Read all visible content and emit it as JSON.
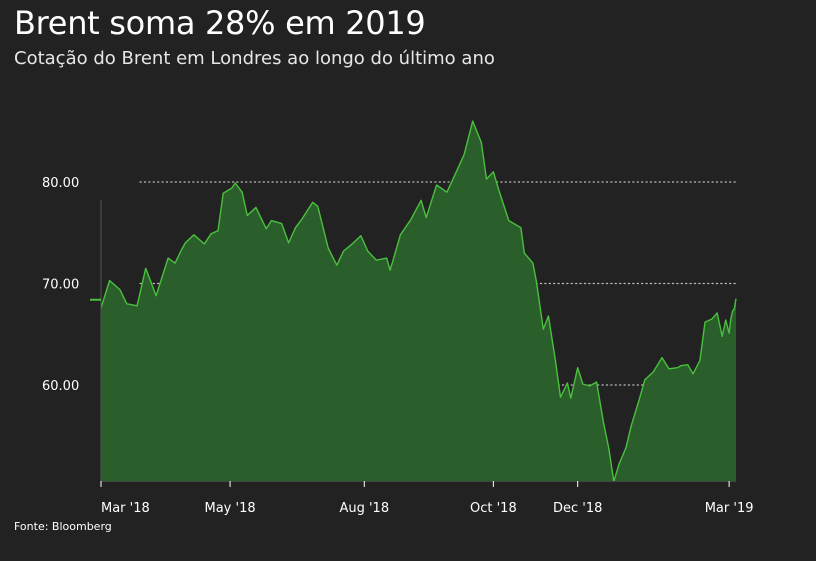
{
  "header": {
    "title": "Brent soma 28% em 2019",
    "subtitle": "Cotação do Brent em Londres ao longo do último ano"
  },
  "footer": {
    "source": "Fonte: Bloomberg"
  },
  "colors": {
    "background": "#222222",
    "area_fill": "#2a5e2a",
    "line": "#49c03e",
    "gridline": "#bbbbbb"
  },
  "chart_data": {
    "type": "area",
    "title": "Brent soma 28% em 2019",
    "subtitle": "Cotação do Brent em Londres ao longo do último ano",
    "xlabel": "",
    "ylabel": "",
    "xlim": [
      "2018-03-01",
      "2019-03-05"
    ],
    "ylim": [
      50,
      88
    ],
    "grid": "horizontal dotted",
    "y_ticks": [
      {
        "value": 60,
        "label": "60.00"
      },
      {
        "value": 70,
        "label": "70.00"
      },
      {
        "value": 80,
        "label": "80.00"
      }
    ],
    "x_ticks": [
      {
        "date": "2018-03-01",
        "label": "Mar '18"
      },
      {
        "date": "2018-05-15",
        "label": "May '18"
      },
      {
        "date": "2018-08-01",
        "label": "Aug '18"
      },
      {
        "date": "2018-10-15",
        "label": "Oct '18"
      },
      {
        "date": "2018-12-03",
        "label": "Dec '18"
      },
      {
        "date": "2019-03-01",
        "label": "Mar '19"
      }
    ],
    "series": [
      {
        "values": [
          [
            "2018-03-01",
            67.6
          ],
          [
            "2018-03-06",
            70.3
          ],
          [
            "2018-03-12",
            69.4
          ],
          [
            "2018-03-16",
            68.0
          ],
          [
            "2018-03-22",
            67.8
          ],
          [
            "2018-03-27",
            71.5
          ],
          [
            "2018-04-02",
            68.8
          ],
          [
            "2018-04-09",
            72.5
          ],
          [
            "2018-04-13",
            72.0
          ],
          [
            "2018-04-17",
            73.4
          ],
          [
            "2018-04-19",
            74.0
          ],
          [
            "2018-04-24",
            74.8
          ],
          [
            "2018-04-30",
            73.9
          ],
          [
            "2018-05-04",
            74.9
          ],
          [
            "2018-05-08",
            75.2
          ],
          [
            "2018-05-11",
            78.9
          ],
          [
            "2018-05-16",
            79.4
          ],
          [
            "2018-05-18",
            79.9
          ],
          [
            "2018-05-22",
            79.0
          ],
          [
            "2018-05-25",
            76.7
          ],
          [
            "2018-05-30",
            77.5
          ],
          [
            "2018-06-05",
            75.4
          ],
          [
            "2018-06-08",
            76.2
          ],
          [
            "2018-06-14",
            75.9
          ],
          [
            "2018-06-18",
            74.0
          ],
          [
            "2018-06-22",
            75.5
          ],
          [
            "2018-06-26",
            76.4
          ],
          [
            "2018-07-02",
            78.0
          ],
          [
            "2018-07-05",
            77.6
          ],
          [
            "2018-07-11",
            73.5
          ],
          [
            "2018-07-16",
            71.8
          ],
          [
            "2018-07-20",
            73.2
          ],
          [
            "2018-07-25",
            73.9
          ],
          [
            "2018-07-30",
            74.7
          ],
          [
            "2018-08-03",
            73.2
          ],
          [
            "2018-08-08",
            72.3
          ],
          [
            "2018-08-14",
            72.5
          ],
          [
            "2018-08-16",
            71.3
          ],
          [
            "2018-08-22",
            74.8
          ],
          [
            "2018-08-28",
            76.3
          ],
          [
            "2018-09-03",
            78.2
          ],
          [
            "2018-09-06",
            76.5
          ],
          [
            "2018-09-12",
            79.7
          ],
          [
            "2018-09-18",
            79.0
          ],
          [
            "2018-09-24",
            81.2
          ],
          [
            "2018-09-28",
            82.7
          ],
          [
            "2018-10-03",
            86.0
          ],
          [
            "2018-10-08",
            83.9
          ],
          [
            "2018-10-11",
            80.3
          ],
          [
            "2018-10-15",
            81.0
          ],
          [
            "2018-10-18",
            79.3
          ],
          [
            "2018-10-24",
            76.2
          ],
          [
            "2018-10-31",
            75.5
          ],
          [
            "2018-11-02",
            73.0
          ],
          [
            "2018-11-07",
            72.0
          ],
          [
            "2018-11-09",
            70.2
          ],
          [
            "2018-11-13",
            65.5
          ],
          [
            "2018-11-16",
            66.8
          ],
          [
            "2018-11-20",
            62.5
          ],
          [
            "2018-11-23",
            58.8
          ],
          [
            "2018-11-27",
            60.2
          ],
          [
            "2018-11-29",
            58.7
          ],
          [
            "2018-12-03",
            61.7
          ],
          [
            "2018-12-06",
            60.1
          ],
          [
            "2018-12-10",
            59.9
          ],
          [
            "2018-12-14",
            60.3
          ],
          [
            "2018-12-18",
            56.3
          ],
          [
            "2018-12-21",
            53.8
          ],
          [
            "2018-12-24",
            50.5
          ],
          [
            "2018-12-27",
            52.2
          ],
          [
            "2018-12-31",
            53.8
          ],
          [
            "2019-01-03",
            55.9
          ],
          [
            "2019-01-08",
            58.7
          ],
          [
            "2019-01-11",
            60.5
          ],
          [
            "2019-01-16",
            61.3
          ],
          [
            "2019-01-21",
            62.7
          ],
          [
            "2019-01-25",
            61.6
          ],
          [
            "2019-01-30",
            61.7
          ],
          [
            "2019-02-01",
            61.9
          ],
          [
            "2019-02-05",
            62.0
          ],
          [
            "2019-02-08",
            61.1
          ],
          [
            "2019-02-12",
            62.4
          ],
          [
            "2019-02-15",
            66.2
          ],
          [
            "2019-02-19",
            66.5
          ],
          [
            "2019-02-22",
            67.1
          ],
          [
            "2019-02-25",
            64.8
          ],
          [
            "2019-02-27",
            66.4
          ],
          [
            "2019-03-01",
            65.1
          ],
          [
            "2019-03-02",
            66.5
          ],
          [
            "2019-03-03",
            67.3
          ],
          [
            "2019-03-04",
            67.5
          ],
          [
            "2019-03-05",
            68.5
          ]
        ]
      }
    ],
    "marker": {
      "date": "2018-03-01",
      "value": 68.4,
      "style": "short horizontal tick at left edge"
    }
  }
}
